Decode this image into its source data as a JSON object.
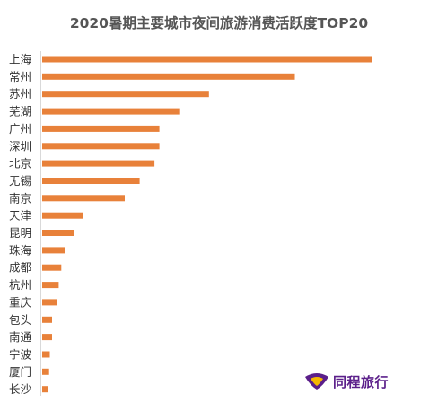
{
  "chart_data": {
    "type": "bar",
    "orientation": "horizontal",
    "title": "2020暑期主要城市夜间旅游消费活跃度TOP20",
    "categories": [
      "上海",
      "常州",
      "苏州",
      "芜湖",
      "广州",
      "深圳",
      "北京",
      "无锡",
      "南京",
      "天津",
      "昆明",
      "珠海",
      "成都",
      "杭州",
      "重庆",
      "包头",
      "南通",
      "宁波",
      "厦门",
      "长沙"
    ],
    "values": [
      100,
      76.5,
      50.5,
      41.5,
      35.5,
      35.5,
      34,
      29.5,
      25,
      12.5,
      9.5,
      6.8,
      5.8,
      5,
      4.5,
      3,
      3,
      2.3,
      2.1,
      1.9
    ],
    "bar_color": "#e8813a",
    "xlabel": "",
    "ylabel": "",
    "xlim": [
      0,
      100
    ],
    "grid": false,
    "legend": "none"
  },
  "brand": {
    "name": "同程旅行",
    "icon": "tongcheng-logo-icon",
    "color": "#5b1f8a",
    "accent": "#f5b800"
  }
}
